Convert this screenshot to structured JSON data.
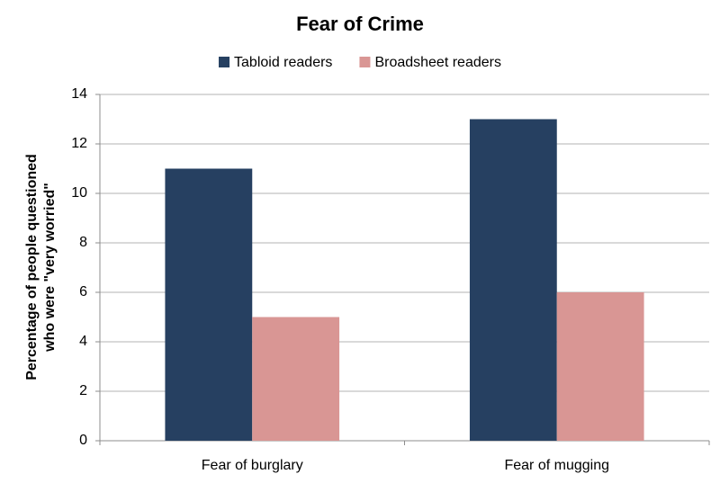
{
  "chart_data": {
    "type": "bar",
    "title": "Fear of Crime",
    "ylabel": [
      "Percentage of people questioned",
      "who were \"very worried\""
    ],
    "categories": [
      "Fear of burglary",
      "Fear of mugging"
    ],
    "series": [
      {
        "name": "Tabloid readers",
        "color": "#264061",
        "values": [
          11,
          13
        ]
      },
      {
        "name": "Broadsheet readers",
        "color": "#d99694",
        "values": [
          5,
          6
        ]
      }
    ],
    "ylim": [
      0,
      14
    ],
    "yticks": [
      0,
      2,
      4,
      6,
      8,
      10,
      12,
      14
    ],
    "grid": true,
    "legend": "top"
  }
}
